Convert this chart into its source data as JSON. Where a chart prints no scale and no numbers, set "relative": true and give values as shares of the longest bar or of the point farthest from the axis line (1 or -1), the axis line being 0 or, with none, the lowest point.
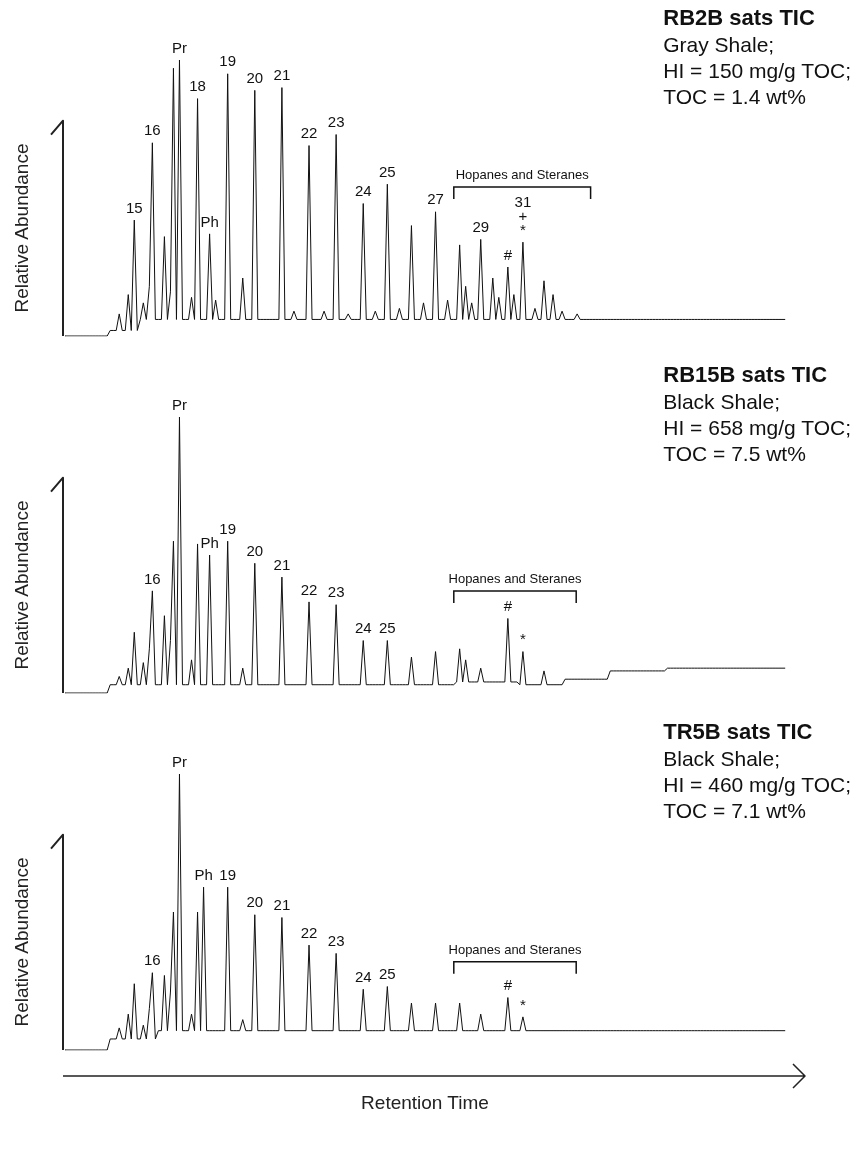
{
  "chart_data": [
    {
      "type": "line",
      "title": "RB2B sats TIC",
      "subtitle": "Gray Shale;\nHI = 150 mg/g TOC;\nTOC = 1.4 wt%",
      "ylabel": "Relative Abundance",
      "relative": true,
      "color": "#111111",
      "annotations": [
        "Hopanes and Steranes"
      ],
      "categories": [
        null,
        null,
        null,
        null,
        null,
        null,
        null,
        null,
        null,
        null,
        null,
        null,
        null,
        null,
        null,
        null,
        null,
        null,
        null,
        null,
        null,
        null,
        null,
        "15",
        null,
        null,
        null,
        null,
        null,
        "16",
        null,
        null,
        null,
        null,
        null,
        null,
        null,
        null,
        "Pr",
        null,
        null,
        null,
        null,
        null,
        "18",
        null,
        null,
        null,
        "Ph",
        null,
        null,
        null,
        null,
        null,
        "19",
        null,
        null,
        null,
        null,
        null,
        null,
        null,
        null,
        "20",
        null,
        null,
        null,
        null,
        null,
        null,
        null,
        null,
        "21",
        null,
        null,
        null,
        null,
        null,
        null,
        null,
        null,
        "22",
        null,
        null,
        null,
        null,
        null,
        null,
        null,
        null,
        "23",
        null,
        null,
        null,
        null,
        null,
        null,
        null,
        null,
        "24",
        null,
        null,
        null,
        null,
        null,
        null,
        null,
        "25",
        null,
        null,
        null,
        null,
        null,
        null,
        null,
        null,
        null,
        null,
        null,
        null,
        null,
        null,
        null,
        "27",
        null,
        null,
        null,
        null,
        null,
        null,
        null,
        null,
        null,
        null,
        null,
        null,
        null,
        null,
        "29",
        null,
        null,
        null,
        null,
        null,
        null,
        null,
        null,
        "#",
        null,
        null,
        null,
        null,
        "31\n+\n*",
        null,
        null,
        null,
        null,
        null,
        null,
        null,
        null,
        null,
        null,
        null,
        null,
        null,
        null,
        null,
        null,
        null,
        null,
        null,
        null,
        null,
        null,
        null,
        null,
        null,
        null,
        null,
        null,
        null,
        null,
        null,
        null,
        null,
        null,
        null,
        null,
        null,
        null,
        null,
        null,
        null,
        null,
        null,
        null,
        null,
        null,
        null,
        null,
        null,
        null,
        null,
        null,
        null,
        null,
        null,
        null,
        null,
        null,
        null,
        null,
        null,
        null,
        null,
        null,
        null,
        null,
        null,
        null,
        null,
        null,
        null,
        null,
        null,
        null,
        null,
        null,
        null,
        null,
        null,
        null,
        null,
        null,
        null,
        null,
        null,
        null,
        null
      ],
      "values": [
        0,
        0,
        0,
        0,
        0,
        0,
        0,
        0,
        0,
        0,
        0,
        0,
        0,
        0,
        0,
        0.02,
        0.02,
        0.02,
        0.08,
        0.02,
        0.02,
        0.15,
        0.02,
        0.42,
        0.02,
        0.06,
        0.12,
        0.06,
        0.18,
        0.7,
        0.06,
        0.06,
        0.06,
        0.36,
        0.06,
        0.16,
        0.97,
        0.06,
        1,
        0.06,
        0.06,
        0.06,
        0.14,
        0.06,
        0.86,
        0.06,
        0.06,
        0.06,
        0.37,
        0.06,
        0.13,
        0.06,
        0.06,
        0.06,
        0.95,
        0.06,
        0.06,
        0.06,
        0.06,
        0.21,
        0.06,
        0.06,
        0.06,
        0.89,
        0.06,
        0.06,
        0.06,
        0.06,
        0.06,
        0.06,
        0.06,
        0.06,
        0.9,
        0.06,
        0.06,
        0.06,
        0.09,
        0.06,
        0.06,
        0.06,
        0.06,
        0.69,
        0.06,
        0.06,
        0.06,
        0.06,
        0.09,
        0.06,
        0.06,
        0.06,
        0.73,
        0.06,
        0.06,
        0.06,
        0.08,
        0.06,
        0.06,
        0.06,
        0.06,
        0.48,
        0.06,
        0.06,
        0.06,
        0.09,
        0.06,
        0.06,
        0.06,
        0.55,
        0.06,
        0.06,
        0.06,
        0.1,
        0.06,
        0.06,
        0.06,
        0.4,
        0.06,
        0.06,
        0.06,
        0.12,
        0.06,
        0.06,
        0.06,
        0.45,
        0.06,
        0.06,
        0.06,
        0.13,
        0.06,
        0.06,
        0.06,
        0.33,
        0.06,
        0.18,
        0.06,
        0.12,
        0.06,
        0.06,
        0.35,
        0.06,
        0.06,
        0.06,
        0.21,
        0.06,
        0.14,
        0.06,
        0.06,
        0.25,
        0.06,
        0.15,
        0.06,
        0.06,
        0.34,
        0.06,
        0.06,
        0.06,
        0.1,
        0.06,
        0.06,
        0.2,
        0.06,
        0.06,
        0.15,
        0.06,
        0.06,
        0.09,
        0.06,
        0.06,
        0.06,
        0.06,
        0.08,
        0.06,
        0.06,
        0.06,
        0.06,
        0.06,
        0.06,
        0.06,
        0.06,
        0.06,
        0.06,
        0.06,
        0.06,
        0.06,
        0.06,
        0.06,
        0.06,
        0.06,
        0.06,
        0.06,
        0.06,
        0.06,
        0.06,
        0.06,
        0.06,
        0.06,
        0.06,
        0.06,
        0.06,
        0.06,
        0.06,
        0.06,
        0.06,
        0.06,
        0.06,
        0.06,
        0.06,
        0.06,
        0.06,
        0.06,
        0.06,
        0.06,
        0.06,
        0.06,
        0.06,
        0.06,
        0.06,
        0.06,
        0.06,
        0.06,
        0.06,
        0.06,
        0.06,
        0.06,
        0.06,
        0.06,
        0.06,
        0.06,
        0.06,
        0.06,
        0.06,
        0.06,
        0.06,
        0.06,
        0.06,
        0.06,
        0.06,
        0.06,
        0.06,
        0.06
      ]
    },
    {
      "type": "line",
      "title": "RB15B sats TIC",
      "subtitle": "Black Shale;\nHI = 658 mg/g TOC;\nTOC = 7.5 wt%",
      "ylabel": "Relative Abundance",
      "relative": true,
      "color": "#111111",
      "annotations": [
        "Hopanes and Steranes"
      ],
      "categories": [
        null,
        null,
        null,
        null,
        null,
        null,
        null,
        null,
        null,
        null,
        null,
        null,
        null,
        null,
        null,
        null,
        null,
        null,
        null,
        null,
        null,
        null,
        null,
        null,
        null,
        null,
        null,
        null,
        null,
        "16",
        null,
        null,
        null,
        null,
        null,
        null,
        null,
        null,
        "Pr",
        null,
        null,
        null,
        null,
        null,
        null,
        null,
        null,
        null,
        "Ph",
        null,
        null,
        null,
        null,
        null,
        "19",
        null,
        null,
        null,
        null,
        null,
        null,
        null,
        null,
        "20",
        null,
        null,
        null,
        null,
        null,
        null,
        null,
        null,
        "21",
        null,
        null,
        null,
        null,
        null,
        null,
        null,
        null,
        "22",
        null,
        null,
        null,
        null,
        null,
        null,
        null,
        null,
        "23",
        null,
        null,
        null,
        null,
        null,
        null,
        null,
        null,
        "24",
        null,
        null,
        null,
        null,
        null,
        null,
        null,
        "25",
        null,
        null,
        null,
        null,
        null,
        null,
        null,
        null,
        null,
        null,
        null,
        null,
        null,
        null,
        null,
        null,
        null,
        null,
        null,
        null,
        null,
        null,
        null,
        null,
        null,
        null,
        null,
        null,
        null,
        null,
        null,
        null,
        null,
        null,
        null,
        null,
        null,
        null,
        null,
        "#",
        null,
        null,
        null,
        null,
        "*",
        null,
        null,
        null,
        null,
        null,
        null,
        null,
        null,
        null,
        null,
        null,
        null,
        null,
        null,
        null,
        null,
        null,
        null,
        null,
        null,
        null,
        null,
        null,
        null,
        null,
        null,
        null,
        null,
        null,
        null,
        null,
        null,
        null,
        null,
        null,
        null,
        null,
        null,
        null,
        null,
        null,
        null,
        null,
        null,
        null,
        null,
        null,
        null,
        null,
        null,
        null,
        null,
        null,
        null,
        null,
        null,
        null,
        null,
        null,
        null,
        null,
        null,
        null,
        null,
        null,
        null,
        null,
        null,
        null,
        null,
        null,
        null,
        null,
        null,
        null,
        null,
        null,
        null,
        null,
        null,
        null,
        null,
        null,
        null,
        null,
        null,
        null
      ],
      "values": [
        0,
        0,
        0,
        0,
        0,
        0,
        0,
        0,
        0,
        0,
        0,
        0,
        0,
        0,
        0,
        0.03,
        0.03,
        0.03,
        0.06,
        0.03,
        0.03,
        0.09,
        0.03,
        0.22,
        0.03,
        0.03,
        0.11,
        0.03,
        0.16,
        0.37,
        0.03,
        0.03,
        0.03,
        0.28,
        0.03,
        0.19,
        0.55,
        0.03,
        1,
        0.03,
        0.03,
        0.03,
        0.12,
        0.03,
        0.54,
        0.03,
        0.03,
        0.03,
        0.5,
        0.03,
        0.03,
        0.03,
        0.03,
        0.03,
        0.55,
        0.03,
        0.03,
        0.03,
        0.03,
        0.09,
        0.03,
        0.03,
        0.03,
        0.47,
        0.03,
        0.03,
        0.03,
        0.03,
        0.03,
        0.03,
        0.03,
        0.03,
        0.42,
        0.03,
        0.03,
        0.03,
        0.03,
        0.03,
        0.03,
        0.03,
        0.03,
        0.33,
        0.03,
        0.03,
        0.03,
        0.03,
        0.03,
        0.03,
        0.03,
        0.03,
        0.32,
        0.03,
        0.03,
        0.03,
        0.03,
        0.03,
        0.03,
        0.03,
        0.03,
        0.19,
        0.03,
        0.03,
        0.03,
        0.03,
        0.03,
        0.03,
        0.03,
        0.19,
        0.03,
        0.03,
        0.03,
        0.03,
        0.03,
        0.03,
        0.03,
        0.13,
        0.03,
        0.03,
        0.03,
        0.03,
        0.03,
        0.03,
        0.03,
        0.15,
        0.03,
        0.03,
        0.03,
        0.03,
        0.03,
        0.03,
        0.04,
        0.16,
        0.04,
        0.12,
        0.04,
        0.04,
        0.04,
        0.04,
        0.09,
        0.04,
        0.04,
        0.04,
        0.04,
        0.04,
        0.04,
        0.04,
        0.04,
        0.27,
        0.04,
        0.04,
        0.04,
        0.03,
        0.15,
        0.03,
        0.03,
        0.03,
        0.03,
        0.03,
        0.03,
        0.08,
        0.03,
        0.03,
        0.03,
        0.03,
        0.03,
        0.03,
        0.05,
        0.05,
        0.05,
        0.05,
        0.05,
        0.05,
        0.05,
        0.05,
        0.05,
        0.05,
        0.05,
        0.05,
        0.05,
        0.05,
        0.05,
        0.08,
        0.08,
        0.08,
        0.08,
        0.08,
        0.08,
        0.08,
        0.08,
        0.08,
        0.08,
        0.08,
        0.08,
        0.08,
        0.08,
        0.08,
        0.08,
        0.08,
        0.08,
        0.08,
        0.09,
        0.09,
        0.09,
        0.09,
        0.09,
        0.09,
        0.09,
        0.09,
        0.09,
        0.09,
        0.09,
        0.09,
        0.09,
        0.09,
        0.09,
        0.09,
        0.09,
        0.09,
        0.09,
        0.09,
        0.09,
        0.09,
        0.09,
        0.09,
        0.09,
        0.09,
        0.09,
        0.09,
        0.09,
        0.09,
        0.09,
        0.09,
        0.09,
        0.09,
        0.09,
        0.09,
        0.09,
        0.09,
        0.09,
        0.09
      ]
    },
    {
      "type": "line",
      "title": "TR5B sats TIC",
      "subtitle": "Black Shale;\nHI = 460 mg/g TOC;\nTOC = 7.1 wt%",
      "xlabel": "Retention Time",
      "ylabel": "Relative Abundance",
      "relative": true,
      "color": "#111111",
      "annotations": [
        "Hopanes and Steranes"
      ],
      "categories": [
        null,
        null,
        null,
        null,
        null,
        null,
        null,
        null,
        null,
        null,
        null,
        null,
        null,
        null,
        null,
        null,
        null,
        null,
        null,
        null,
        null,
        null,
        null,
        null,
        null,
        null,
        null,
        null,
        null,
        "16",
        null,
        null,
        null,
        null,
        null,
        null,
        null,
        null,
        "Pr",
        null,
        null,
        null,
        null,
        null,
        null,
        null,
        "Ph",
        null,
        null,
        null,
        null,
        null,
        null,
        null,
        "19",
        null,
        null,
        null,
        null,
        null,
        null,
        null,
        null,
        "20",
        null,
        null,
        null,
        null,
        null,
        null,
        null,
        null,
        "21",
        null,
        null,
        null,
        null,
        null,
        null,
        null,
        null,
        "22",
        null,
        null,
        null,
        null,
        null,
        null,
        null,
        null,
        "23",
        null,
        null,
        null,
        null,
        null,
        null,
        null,
        null,
        "24",
        null,
        null,
        null,
        null,
        null,
        null,
        null,
        "25",
        null,
        null,
        null,
        null,
        null,
        null,
        null,
        null,
        null,
        null,
        null,
        null,
        null,
        null,
        null,
        null,
        null,
        null,
        null,
        null,
        null,
        null,
        null,
        null,
        null,
        null,
        null,
        null,
        null,
        null,
        null,
        null,
        null,
        null,
        null,
        null,
        null,
        null,
        null,
        "#",
        null,
        null,
        null,
        null,
        "*",
        null,
        null,
        null,
        null,
        null,
        null,
        null,
        null,
        null,
        null,
        null,
        null,
        null,
        null,
        null,
        null,
        null,
        null,
        null,
        null,
        null,
        null,
        null,
        null,
        null,
        null,
        null,
        null,
        null,
        null,
        null,
        null,
        null,
        null,
        null,
        null,
        null,
        null,
        null,
        null,
        null,
        null,
        null,
        null,
        null,
        null,
        null,
        null,
        null,
        null,
        null,
        null,
        null,
        null,
        null,
        null,
        null,
        null,
        null,
        null,
        null,
        null,
        null,
        null,
        null,
        null,
        null,
        null,
        null,
        null,
        null,
        null,
        null,
        null,
        null,
        null,
        null,
        null,
        null,
        null,
        null,
        null,
        null,
        null,
        null,
        null,
        null
      ],
      "values": [
        0,
        0,
        0,
        0,
        0,
        0,
        0,
        0,
        0,
        0,
        0,
        0,
        0,
        0,
        0,
        0.04,
        0.04,
        0.04,
        0.08,
        0.04,
        0.04,
        0.13,
        0.04,
        0.24,
        0.04,
        0.04,
        0.09,
        0.04,
        0.15,
        0.28,
        0.04,
        0.07,
        0.07,
        0.27,
        0.07,
        0.21,
        0.5,
        0.07,
        1,
        0.07,
        0.07,
        0.07,
        0.13,
        0.07,
        0.5,
        0.07,
        0.59,
        0.07,
        0.07,
        0.07,
        0.07,
        0.07,
        0.07,
        0.07,
        0.59,
        0.07,
        0.07,
        0.07,
        0.07,
        0.11,
        0.07,
        0.07,
        0.07,
        0.49,
        0.07,
        0.07,
        0.07,
        0.07,
        0.07,
        0.07,
        0.07,
        0.07,
        0.48,
        0.07,
        0.07,
        0.07,
        0.07,
        0.07,
        0.07,
        0.07,
        0.07,
        0.38,
        0.07,
        0.07,
        0.07,
        0.07,
        0.07,
        0.07,
        0.07,
        0.07,
        0.35,
        0.07,
        0.07,
        0.07,
        0.07,
        0.07,
        0.07,
        0.07,
        0.07,
        0.22,
        0.07,
        0.07,
        0.07,
        0.07,
        0.07,
        0.07,
        0.07,
        0.23,
        0.07,
        0.07,
        0.07,
        0.07,
        0.07,
        0.07,
        0.07,
        0.17,
        0.07,
        0.07,
        0.07,
        0.07,
        0.07,
        0.07,
        0.07,
        0.17,
        0.07,
        0.07,
        0.07,
        0.07,
        0.07,
        0.07,
        0.07,
        0.17,
        0.07,
        0.07,
        0.07,
        0.07,
        0.07,
        0.07,
        0.13,
        0.07,
        0.07,
        0.07,
        0.07,
        0.07,
        0.07,
        0.07,
        0.07,
        0.19,
        0.07,
        0.07,
        0.07,
        0.07,
        0.12,
        0.07,
        0.07,
        0.07,
        0.07,
        0.07,
        0.07,
        0.07,
        0.07,
        0.07,
        0.07,
        0.07,
        0.07,
        0.07,
        0.07,
        0.07,
        0.07,
        0.07,
        0.07,
        0.07,
        0.07,
        0.07,
        0.07,
        0.07,
        0.07,
        0.07,
        0.07,
        0.07,
        0.07,
        0.07,
        0.07,
        0.07,
        0.07,
        0.07,
        0.07,
        0.07,
        0.07,
        0.07,
        0.07,
        0.07,
        0.07,
        0.07,
        0.07,
        0.07,
        0.07,
        0.07,
        0.07,
        0.07,
        0.07,
        0.07,
        0.07,
        0.07,
        0.07,
        0.07,
        0.07,
        0.07,
        0.07,
        0.07,
        0.07,
        0.07,
        0.07,
        0.07,
        0.07,
        0.07,
        0.07,
        0.07,
        0.07,
        0.07,
        0.07,
        0.07,
        0.07,
        0.07,
        0.07,
        0.07,
        0.07,
        0.07,
        0.07,
        0.07,
        0.07,
        0.07,
        0.07,
        0.07,
        0.07,
        0.07,
        0.07,
        0.07,
        0.07,
        0.07
      ]
    }
  ]
}
